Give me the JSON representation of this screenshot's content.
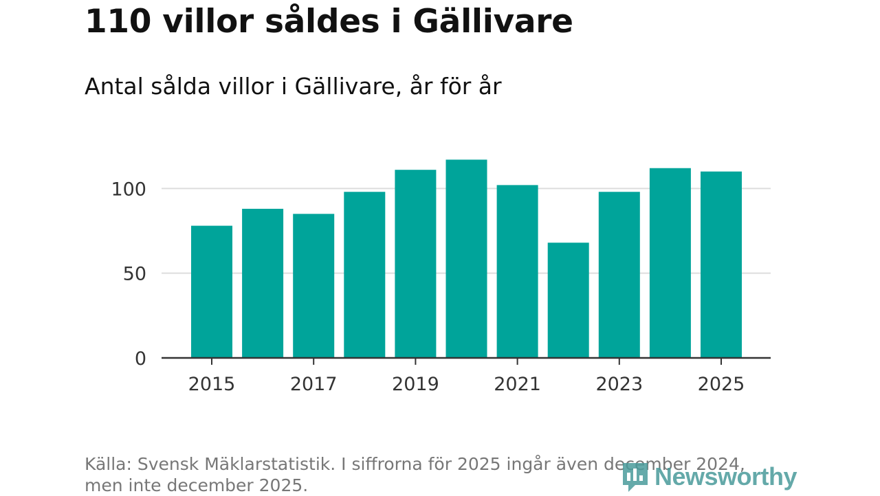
{
  "title": "110 villor såldes i Gällivare",
  "subtitle": "Antal sålda villor i Gällivare, år för år",
  "source": "Källa: Svensk Mäklarstatistik. I siffrorna för 2025 ingår även december 2024, men inte december 2025.",
  "logo_text": "Newsworthy",
  "colors": {
    "bar": "#00a49a",
    "grid": "#dddddd",
    "axis": "#333333"
  },
  "chart_data": {
    "type": "bar",
    "title": "Antal sålda villor i Gällivare, år för år",
    "xlabel": "",
    "ylabel": "",
    "categories": [
      "2015",
      "2016",
      "2017",
      "2018",
      "2019",
      "2020",
      "2021",
      "2022",
      "2023",
      "2024",
      "2025"
    ],
    "values": [
      78,
      88,
      85,
      98,
      111,
      117,
      102,
      68,
      98,
      112,
      110
    ],
    "ylim": [
      0,
      120
    ],
    "yticks": [
      0,
      50,
      100
    ],
    "xtick_labels": [
      "2015",
      "2017",
      "2019",
      "2021",
      "2023",
      "2025"
    ],
    "grid": true
  }
}
